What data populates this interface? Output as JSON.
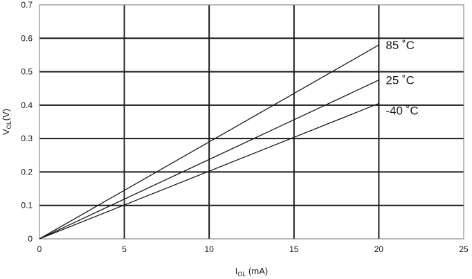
{
  "chart_data": {
    "type": "line",
    "title": "",
    "xlabel": {
      "main": "I",
      "sub": "OL",
      "rest": " (mA)"
    },
    "ylabel": {
      "main": "V",
      "sub": "OL",
      "rest": "(V)"
    },
    "xlim": [
      0,
      25
    ],
    "ylim": [
      0,
      0.7
    ],
    "xticks": [
      0,
      5,
      10,
      15,
      20,
      25
    ],
    "xtick_labels": [
      "0",
      "5",
      "10",
      "15",
      "20",
      "25"
    ],
    "yticks": [
      0,
      0.1,
      0.2,
      0.3,
      0.4,
      0.5,
      0.6,
      0.7
    ],
    "ytick_labels": [
      "0",
      "0.1",
      "0.2",
      "0.3",
      "0.4",
      "0.5",
      "0.6",
      "0.7"
    ],
    "grid": true,
    "legend": "none",
    "series": [
      {
        "name": "85 ˚C",
        "x": [
          0,
          20
        ],
        "y": [
          0,
          0.58
        ]
      },
      {
        "name": "25 ˚C",
        "x": [
          0,
          20
        ],
        "y": [
          0,
          0.475
        ]
      },
      {
        "name": "-40 ˚C",
        "x": [
          0,
          20
        ],
        "y": [
          0,
          0.405
        ]
      }
    ],
    "colors": {
      "line": "#1a1a1a",
      "grid": "#1a1a1a",
      "frame": "#777777"
    }
  }
}
